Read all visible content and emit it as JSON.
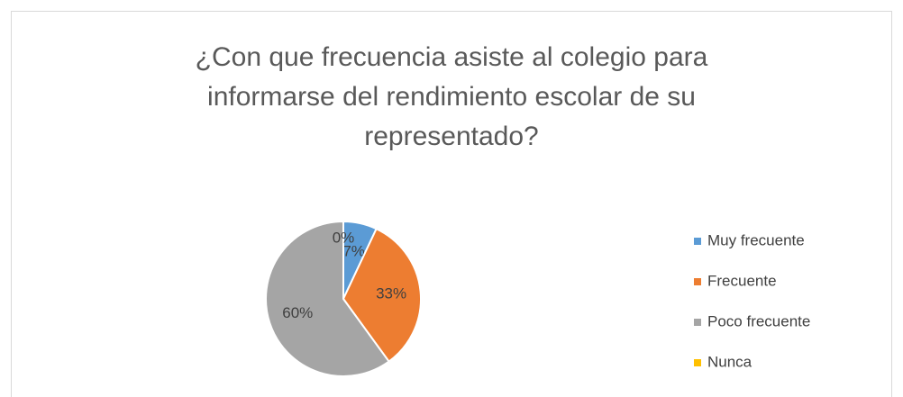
{
  "chart_data": {
    "type": "pie",
    "title": "¿Con que frecuencia asiste al colegio para informarse del rendimiento escolar de su representado?",
    "categories": [
      "Muy frecuente",
      "Frecuente",
      "Poco frecuente",
      "Nunca"
    ],
    "values": [
      7,
      33,
      60,
      0
    ],
    "value_labels": [
      "7%",
      "33%",
      "60%",
      "0%"
    ],
    "colors": [
      "#5b9bd5",
      "#ed7d31",
      "#a5a5a5",
      "#ffc000"
    ],
    "legend": "right"
  }
}
